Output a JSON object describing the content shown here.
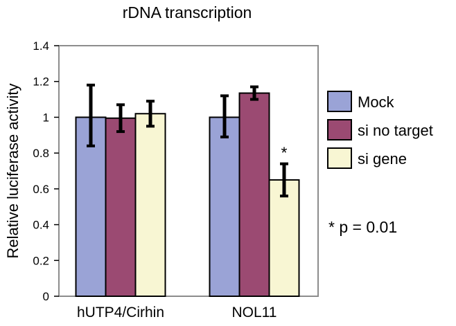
{
  "chart_data": {
    "type": "bar",
    "title": "rDNA transcription",
    "xlabel": "",
    "ylabel": "Relative luciferase activity",
    "ylim": [
      0,
      1.4
    ],
    "yticks": [
      "0",
      "0.2",
      "0.4",
      "0.6",
      "0.8",
      "1",
      "1.2",
      "1.4"
    ],
    "categories": [
      "hUTP4/Cirhin",
      "NOL11"
    ],
    "series": [
      {
        "name": "Mock",
        "color": "#9aa3d6",
        "values": [
          1.0,
          1.0
        ],
        "error_low": [
          0.84,
          0.89
        ],
        "error_high": [
          1.18,
          1.12
        ]
      },
      {
        "name": "si no target",
        "color": "#9b4a72",
        "values": [
          0.995,
          1.135
        ],
        "error_low": [
          0.92,
          1.1
        ],
        "error_high": [
          1.07,
          1.17
        ]
      },
      {
        "name": "si gene",
        "color": "#f8f6d3",
        "values": [
          1.02,
          0.65
        ],
        "error_low": [
          0.95,
          0.56
        ],
        "error_high": [
          1.09,
          0.74
        ]
      }
    ],
    "annotations": [
      {
        "text": "*",
        "category": "NOL11",
        "series": "si gene"
      }
    ],
    "legend_position": "right",
    "grid": false,
    "note": "* p = 0.01"
  }
}
